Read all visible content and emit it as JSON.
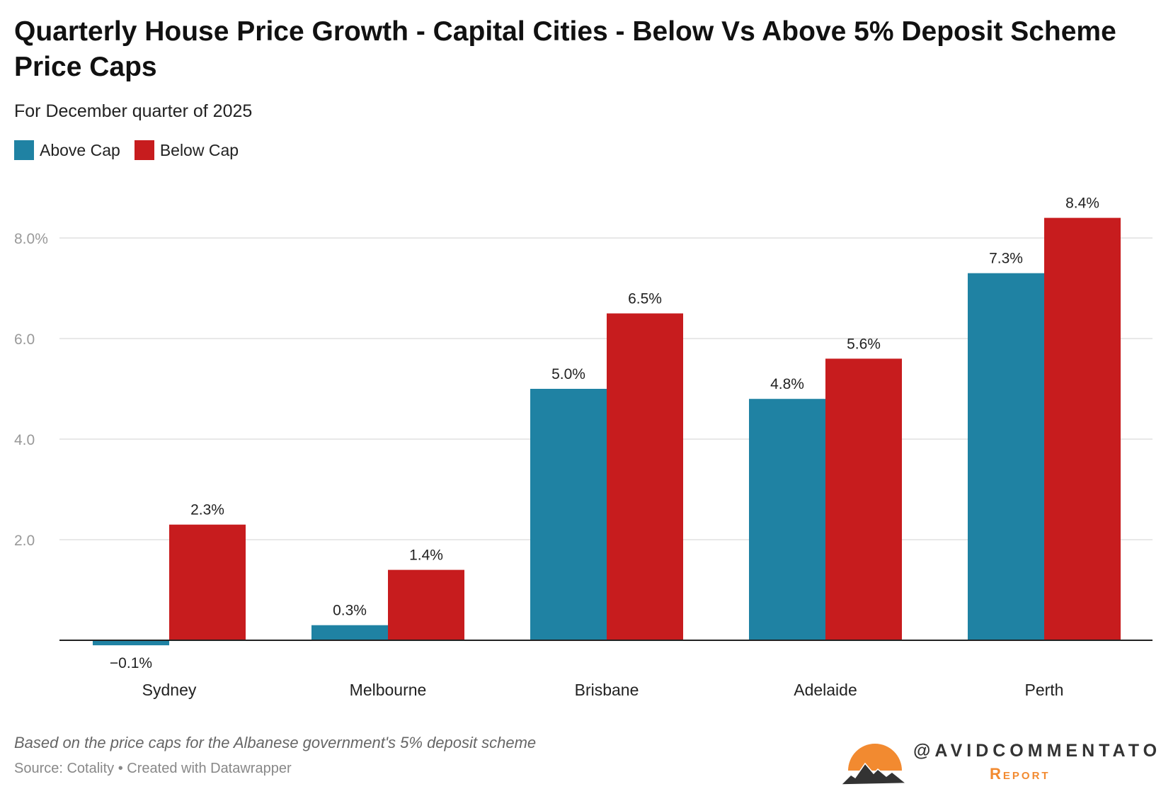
{
  "title": "Quarterly House Price Growth - Capital Cities - Below Vs Above 5% Deposit Scheme Price Caps",
  "subtitle": "For December quarter of 2025",
  "footer": {
    "note": "Based on the price caps for the Albanese government's 5% deposit scheme",
    "source": "Source: Cotality • Created with Datawrapper"
  },
  "logo": {
    "handle": "@AVIDCOMMENTATOR",
    "sub": "Report"
  },
  "colors": {
    "above": "#1f82a3",
    "below": "#c71c1e"
  },
  "chart_data": {
    "type": "bar",
    "title": "Quarterly House Price Growth - Capital Cities - Below Vs Above 5% Deposit Scheme Price Caps",
    "categories": [
      "Sydney",
      "Melbourne",
      "Brisbane",
      "Adelaide",
      "Perth"
    ],
    "series": [
      {
        "name": "Above Cap",
        "values": [
          -0.1,
          0.3,
          5.0,
          4.8,
          7.3
        ],
        "labels": [
          "−0.1%",
          "0.3%",
          "5.0%",
          "4.8%",
          "7.3%"
        ]
      },
      {
        "name": "Below Cap",
        "values": [
          2.3,
          1.4,
          6.5,
          5.6,
          8.4
        ],
        "labels": [
          "2.3%",
          "1.4%",
          "6.5%",
          "5.6%",
          "8.4%"
        ]
      }
    ],
    "yticks": [
      2,
      4,
      6,
      8
    ],
    "ytick_labels": [
      "2.0",
      "4.0",
      "6.0",
      "8.0%"
    ],
    "ylim": [
      -0.1,
      8.4
    ],
    "xlabel": "",
    "ylabel": "",
    "grid": true,
    "legend": "top-left"
  }
}
